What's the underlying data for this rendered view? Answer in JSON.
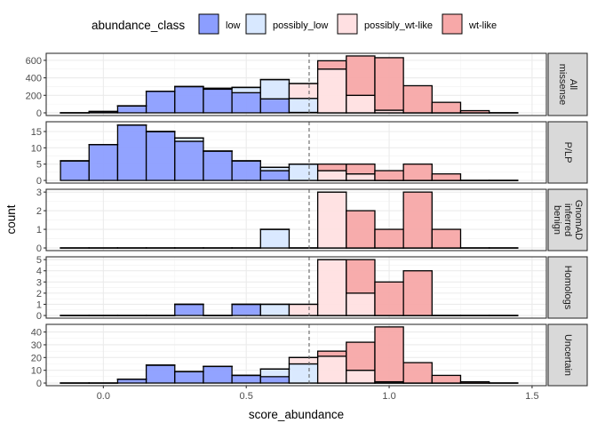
{
  "chart_data": {
    "type": "bar",
    "subtype": "stacked-histogram-faceted",
    "xlabel": "score_abundance",
    "ylabel": "count",
    "xlim": [
      -0.2,
      1.55
    ],
    "x_ticks": [
      0.0,
      0.5,
      1.0,
      1.5
    ],
    "x_tick_labels": [
      "0.0",
      "0.5",
      "1.0",
      "1.5"
    ],
    "threshold_line": 0.72,
    "bins": [
      -0.15,
      -0.05,
      0.05,
      0.15,
      0.25,
      0.35,
      0.45,
      0.55,
      0.65,
      0.75,
      0.85,
      0.95,
      1.05,
      1.15,
      1.25,
      1.35,
      1.45
    ],
    "bin_centers": [
      -0.1,
      0.0,
      0.1,
      0.2,
      0.3,
      0.4,
      0.5,
      0.6,
      0.7,
      0.8,
      0.9,
      1.0,
      1.1,
      1.2,
      1.3,
      1.4
    ],
    "legend": {
      "title": "abundance_class",
      "position": "top",
      "entries": [
        {
          "label": "low",
          "color": "#8c9eff"
        },
        {
          "label": "possibly_low",
          "color": "#d8e8ff"
        },
        {
          "label": "possibly_wt-like",
          "color": "#ffe0e2"
        },
        {
          "label": "wt-like",
          "color": "#f7a8a8"
        }
      ]
    },
    "facets": [
      {
        "label": [
          "All",
          "missense"
        ],
        "ylim": [
          0,
          680
        ],
        "y_ticks": [
          0,
          200,
          400,
          600
        ],
        "series": [
          {
            "name": "low",
            "values": [
              0,
              15,
              80,
              245,
              300,
              270,
              230,
              160,
              5,
              0,
              0,
              0,
              0,
              0,
              0,
              0
            ]
          },
          {
            "name": "possibly_low",
            "values": [
              0,
              0,
              0,
              0,
              0,
              10,
              60,
              220,
              160,
              0,
              0,
              0,
              0,
              0,
              0,
              0
            ]
          },
          {
            "name": "possibly_wt-like",
            "values": [
              0,
              0,
              0,
              0,
              0,
              0,
              0,
              0,
              170,
              500,
              200,
              30,
              0,
              0,
              0,
              0
            ]
          },
          {
            "name": "wt-like",
            "values": [
              0,
              0,
              0,
              0,
              0,
              0,
              0,
              0,
              0,
              95,
              450,
              600,
              310,
              120,
              25,
              0
            ]
          }
        ]
      },
      {
        "label": [
          "P/LP"
        ],
        "ylim": [
          0,
          18
        ],
        "y_ticks": [
          0,
          5,
          10,
          15
        ],
        "series": [
          {
            "name": "low",
            "values": [
              6,
              11,
              17,
              15,
              12,
              9,
              6,
              3,
              0,
              0,
              0,
              0,
              0,
              0,
              0,
              0
            ]
          },
          {
            "name": "possibly_low",
            "values": [
              0,
              0,
              0,
              0,
              1,
              0,
              0,
              1,
              5,
              0,
              0,
              0,
              0,
              0,
              0,
              0
            ]
          },
          {
            "name": "possibly_wt-like",
            "values": [
              0,
              0,
              0,
              0,
              0,
              0,
              0,
              0,
              0,
              3,
              2,
              0,
              0,
              0,
              0,
              0
            ]
          },
          {
            "name": "wt-like",
            "values": [
              0,
              0,
              0,
              0,
              0,
              0,
              0,
              0,
              0,
              2,
              3,
              3,
              5,
              2,
              0,
              0
            ]
          }
        ]
      },
      {
        "label": [
          "GnomAD",
          "inferred",
          "benign"
        ],
        "ylim": [
          0,
          3.15
        ],
        "y_ticks": [
          0,
          1,
          2,
          3
        ],
        "series": [
          {
            "name": "low",
            "values": [
              0,
              0,
              0,
              0,
              0,
              0,
              0,
              0,
              0,
              0,
              0,
              0,
              0,
              0,
              0,
              0
            ]
          },
          {
            "name": "possibly_low",
            "values": [
              0,
              0,
              0,
              0,
              0,
              0,
              0,
              1,
              0,
              0,
              0,
              0,
              0,
              0,
              0,
              0
            ]
          },
          {
            "name": "possibly_wt-like",
            "values": [
              0,
              0,
              0,
              0,
              0,
              0,
              0,
              0,
              0,
              3,
              0,
              0,
              0,
              0,
              0,
              0
            ]
          },
          {
            "name": "wt-like",
            "values": [
              0,
              0,
              0,
              0,
              0,
              0,
              0,
              0,
              0,
              0,
              2,
              1,
              3,
              1,
              0,
              0
            ]
          }
        ]
      },
      {
        "label": [
          "Homologs"
        ],
        "ylim": [
          0,
          5.25
        ],
        "y_ticks": [
          0,
          1,
          2,
          3,
          4,
          5
        ],
        "series": [
          {
            "name": "low",
            "values": [
              0,
              0,
              0,
              0,
              1,
              0,
              1,
              0,
              0,
              0,
              0,
              0,
              0,
              0,
              0,
              0
            ]
          },
          {
            "name": "possibly_low",
            "values": [
              0,
              0,
              0,
              0,
              0,
              0,
              0,
              1,
              0,
              0,
              0,
              0,
              0,
              0,
              0,
              0
            ]
          },
          {
            "name": "possibly_wt-like",
            "values": [
              0,
              0,
              0,
              0,
              0,
              0,
              0,
              0,
              1,
              5,
              2,
              0,
              0,
              0,
              0,
              0
            ]
          },
          {
            "name": "wt-like",
            "values": [
              0,
              0,
              0,
              0,
              0,
              0,
              0,
              0,
              0,
              0,
              3,
              3,
              4,
              0,
              0,
              0
            ]
          }
        ]
      },
      {
        "label": [
          "Uncertain"
        ],
        "ylim": [
          0,
          46
        ],
        "y_ticks": [
          0,
          10,
          20,
          30,
          40
        ],
        "series": [
          {
            "name": "low",
            "values": [
              0,
              0,
              3,
              14,
              9,
              13,
              6,
              5,
              0,
              0,
              0,
              0,
              0,
              0,
              0,
              0
            ]
          },
          {
            "name": "possibly_low",
            "values": [
              0,
              0,
              0,
              0,
              0,
              0,
              0,
              6,
              15,
              0,
              0,
              0,
              0,
              0,
              0,
              0
            ]
          },
          {
            "name": "possibly_wt-like",
            "values": [
              0,
              0,
              0,
              0,
              0,
              0,
              0,
              0,
              5,
              21,
              10,
              1,
              0,
              0,
              0,
              0
            ]
          },
          {
            "name": "wt-like",
            "values": [
              0,
              0,
              0,
              0,
              0,
              0,
              0,
              0,
              0,
              4,
              22,
              43,
              16,
              6,
              1,
              0
            ]
          }
        ]
      }
    ]
  }
}
